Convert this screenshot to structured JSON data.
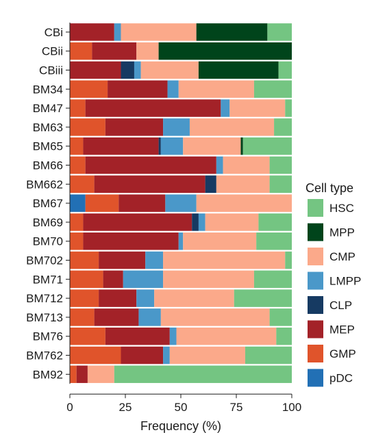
{
  "chart_data": {
    "type": "bar",
    "orientation": "horizontal",
    "stacked": true,
    "xlabel": "Frequency (%)",
    "xlim": [
      0,
      100
    ],
    "xticks": [
      0,
      25,
      50,
      75,
      100
    ],
    "legend_title": "Cell type",
    "legend_placement": "right",
    "grid": false,
    "categories": [
      "CBi",
      "CBii",
      "CBiii",
      "BM34",
      "BM47",
      "BM63",
      "BM65",
      "BM66",
      "BM662",
      "BM67",
      "BM69",
      "BM70",
      "BM702",
      "BM71",
      "BM712",
      "BM713",
      "BM76",
      "BM762",
      "BM92"
    ],
    "legend_order": [
      "HSC",
      "MPP",
      "CMP",
      "LMPP",
      "CLP",
      "MEP",
      "GMP",
      "pDC"
    ],
    "stack_order": [
      "pDC",
      "GMP",
      "MEP",
      "CLP",
      "LMPP",
      "CMP",
      "MPP",
      "HSC"
    ],
    "colors": {
      "HSC": "#74c582",
      "MPP": "#00441b",
      "CMP": "#fba98a",
      "LMPP": "#4a98c9",
      "CLP": "#163a62",
      "MEP": "#a32228",
      "GMP": "#e0542b",
      "pDC": "#2270b5"
    },
    "series": [
      {
        "name": "pDC",
        "values": [
          0,
          0,
          0,
          0,
          0,
          0,
          0,
          0,
          0,
          7,
          0,
          0,
          0,
          0,
          0,
          0,
          0,
          0,
          0
        ]
      },
      {
        "name": "GMP",
        "values": [
          0,
          10,
          0,
          17,
          7,
          16,
          6,
          7,
          11,
          15,
          6,
          6,
          13,
          15,
          13,
          11,
          16,
          23,
          3
        ]
      },
      {
        "name": "MEP",
        "values": [
          20,
          20,
          23,
          27,
          61,
          26,
          34,
          59,
          50,
          21,
          49,
          43,
          21,
          9,
          17,
          20,
          29,
          19,
          5
        ]
      },
      {
        "name": "CLP",
        "values": [
          0,
          0,
          6,
          0,
          0,
          0,
          1,
          0,
          5,
          0,
          3,
          0,
          0,
          0,
          0,
          0,
          0,
          0,
          0
        ]
      },
      {
        "name": "LMPP",
        "values": [
          3,
          0,
          3,
          5,
          4,
          12,
          10,
          3,
          0,
          14,
          3,
          2,
          8,
          18,
          8,
          10,
          3,
          3,
          0
        ]
      },
      {
        "name": "CMP",
        "values": [
          34,
          10,
          26,
          34,
          25,
          38,
          26,
          21,
          24,
          43,
          24,
          33,
          55,
          41,
          36,
          49,
          45,
          34,
          12
        ]
      },
      {
        "name": "MPP",
        "values": [
          32,
          60,
          36,
          0,
          0,
          0,
          1,
          0,
          0,
          0,
          0,
          0,
          0,
          0,
          0,
          0,
          0,
          0,
          0
        ]
      },
      {
        "name": "HSC",
        "values": [
          11,
          0,
          6,
          17,
          3,
          8,
          22,
          10,
          10,
          0,
          15,
          16,
          3,
          17,
          26,
          10,
          7,
          21,
          80
        ]
      }
    ]
  }
}
